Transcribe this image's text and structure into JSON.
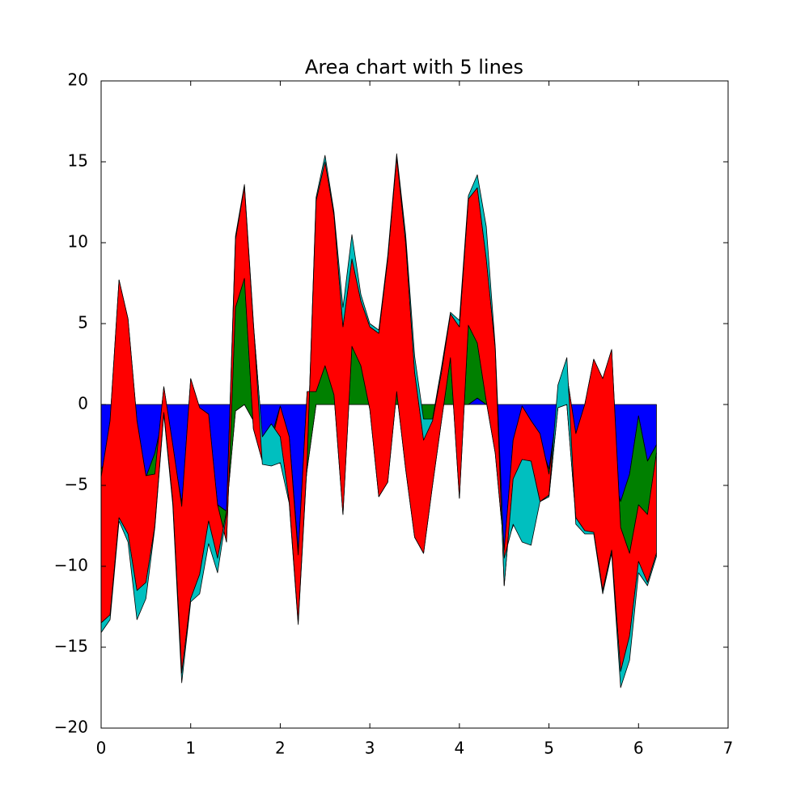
{
  "chart_data": {
    "type": "stackplot",
    "title": "Area chart with 5 lines",
    "x": [
      0,
      0.1,
      0.2,
      0.3,
      0.4,
      0.5,
      0.6,
      0.7,
      0.8,
      0.9,
      1,
      1.1,
      1.2,
      1.3,
      1.4,
      1.5,
      1.6,
      1.7,
      1.8,
      1.9,
      2,
      2.1,
      2.2,
      2.3,
      2.4,
      2.5,
      2.6,
      2.7,
      2.8,
      2.9,
      3,
      3.1,
      3.2,
      3.3,
      3.4,
      3.5,
      3.6,
      3.7,
      3.8,
      3.9,
      4,
      4.1,
      4.2,
      4.3,
      4.4,
      4.5,
      4.6,
      4.7,
      4.8,
      4.9,
      5,
      5.1,
      5.2,
      5.3,
      5.4,
      5.5,
      5.6,
      5.7,
      5.8,
      5.9,
      6,
      6.1,
      6.2
    ],
    "series": [
      {
        "color": "#0000ff",
        "values": [
          -4,
          -3,
          -2,
          -3,
          -4,
          -4.5,
          -3,
          -0.5,
          -3,
          -6,
          -3,
          -1,
          -1,
          -6.2,
          -6.6,
          -0.4,
          0,
          -1,
          -3,
          -2,
          -0.1,
          -2,
          -9,
          -4,
          0,
          0,
          0,
          0,
          0,
          0,
          0,
          0,
          0,
          0,
          0,
          0,
          0,
          0,
          0,
          0,
          0,
          0,
          0.4,
          0,
          0,
          -9,
          -7.5,
          -0.1,
          -1,
          -2.3,
          -4,
          -0.1,
          0,
          -2,
          -2.5,
          -3,
          -3.5,
          -4,
          -6,
          -4.3,
          -0.7,
          -3.5,
          -2.5
        ]
      },
      {
        "color": "#008000",
        "values": [
          -0.5,
          2,
          9.7,
          8.3,
          3,
          0.1,
          -1.3,
          1.6,
          0.5,
          -0.3,
          4.6,
          0.8,
          0.4,
          0,
          -1.9,
          6.4,
          7.8,
          -0.5,
          -0.5,
          -0.4,
          0,
          0,
          -0.3,
          4.8,
          0.8,
          2.4,
          0.6,
          -6.8,
          3.6,
          2.4,
          -0.3,
          -5.7,
          -4.8,
          0.8,
          -4,
          -8.2,
          -9.2,
          -5,
          -1,
          2.9,
          -5.8,
          4.9,
          3.4,
          0.2,
          -3,
          0,
          5.3,
          0,
          0,
          0.5,
          -0.3,
          -0.1,
          1.8,
          0.2,
          2.5,
          5.8,
          5.1,
          7.4,
          -1.6,
          -4.9,
          -5.5,
          -3.3,
          -0.5
        ]
      },
      {
        "color": "#ff0000",
        "values": [
          -9,
          -12,
          -14.7,
          -13.3,
          -10.5,
          -6.6,
          -3.2,
          -1.6,
          -3.5,
          -10.3,
          -13.6,
          -10.3,
          -6.6,
          -3.3,
          1.9,
          4.2,
          5.7,
          6.5,
          1.5,
          1.2,
          -1.9,
          -4,
          -4.2,
          -4.3,
          11.8,
          12.6,
          11.1,
          11.6,
          5.4,
          4,
          5.1,
          10.1,
          13.8,
          14.5,
          14,
          10.2,
          7,
          4,
          3,
          2.7,
          10.6,
          7.8,
          9.6,
          8.8,
          6.5,
          -2.2,
          -2.4,
          -3.3,
          -2.5,
          -4.2,
          -1.4,
          0,
          -1.8,
          -5.2,
          -7.8,
          -10.7,
          -13.1,
          -12.4,
          -8.9,
          -5.1,
          -3.5,
          -4.2,
          -6.2
        ]
      },
      {
        "color": "#00bfbf",
        "values": [
          -0.6,
          -0.3,
          -0.2,
          -0.5,
          -1.8,
          -1,
          -0.1,
          -0.1,
          -0.2,
          -0.6,
          -0.2,
          -1.2,
          -1.4,
          -0.9,
          -0.2,
          0.2,
          0.1,
          0.1,
          -1.7,
          -2.6,
          -1.6,
          -0.1,
          -0.1,
          -0.1,
          0.2,
          0.4,
          0.2,
          1.2,
          1.5,
          0.4,
          0.2,
          0.2,
          0.2,
          0.2,
          0.5,
          1,
          1.3,
          0.1,
          0.3,
          0.1,
          0.4,
          0.2,
          0.8,
          2,
          0.1,
          1.7,
          -2.8,
          -5.1,
          -5.2,
          0,
          0.1,
          1.4,
          2.9,
          -0.4,
          -0.2,
          -0.1,
          -0.2,
          -0.2,
          -1,
          -1.5,
          -0.7,
          -0.2,
          -0.2
        ]
      }
    ],
    "xlim": [
      0,
      7
    ],
    "xticks": [
      0,
      1,
      2,
      3,
      4,
      5,
      6,
      7
    ],
    "ylim": [
      -20,
      20
    ],
    "yticks": [
      {
        "value": -20,
        "label": "−20"
      },
      {
        "value": -15,
        "label": "−15"
      },
      {
        "value": -10,
        "label": "−10"
      },
      {
        "value": -5,
        "label": "−5"
      },
      0,
      5,
      10,
      15,
      20
    ]
  }
}
